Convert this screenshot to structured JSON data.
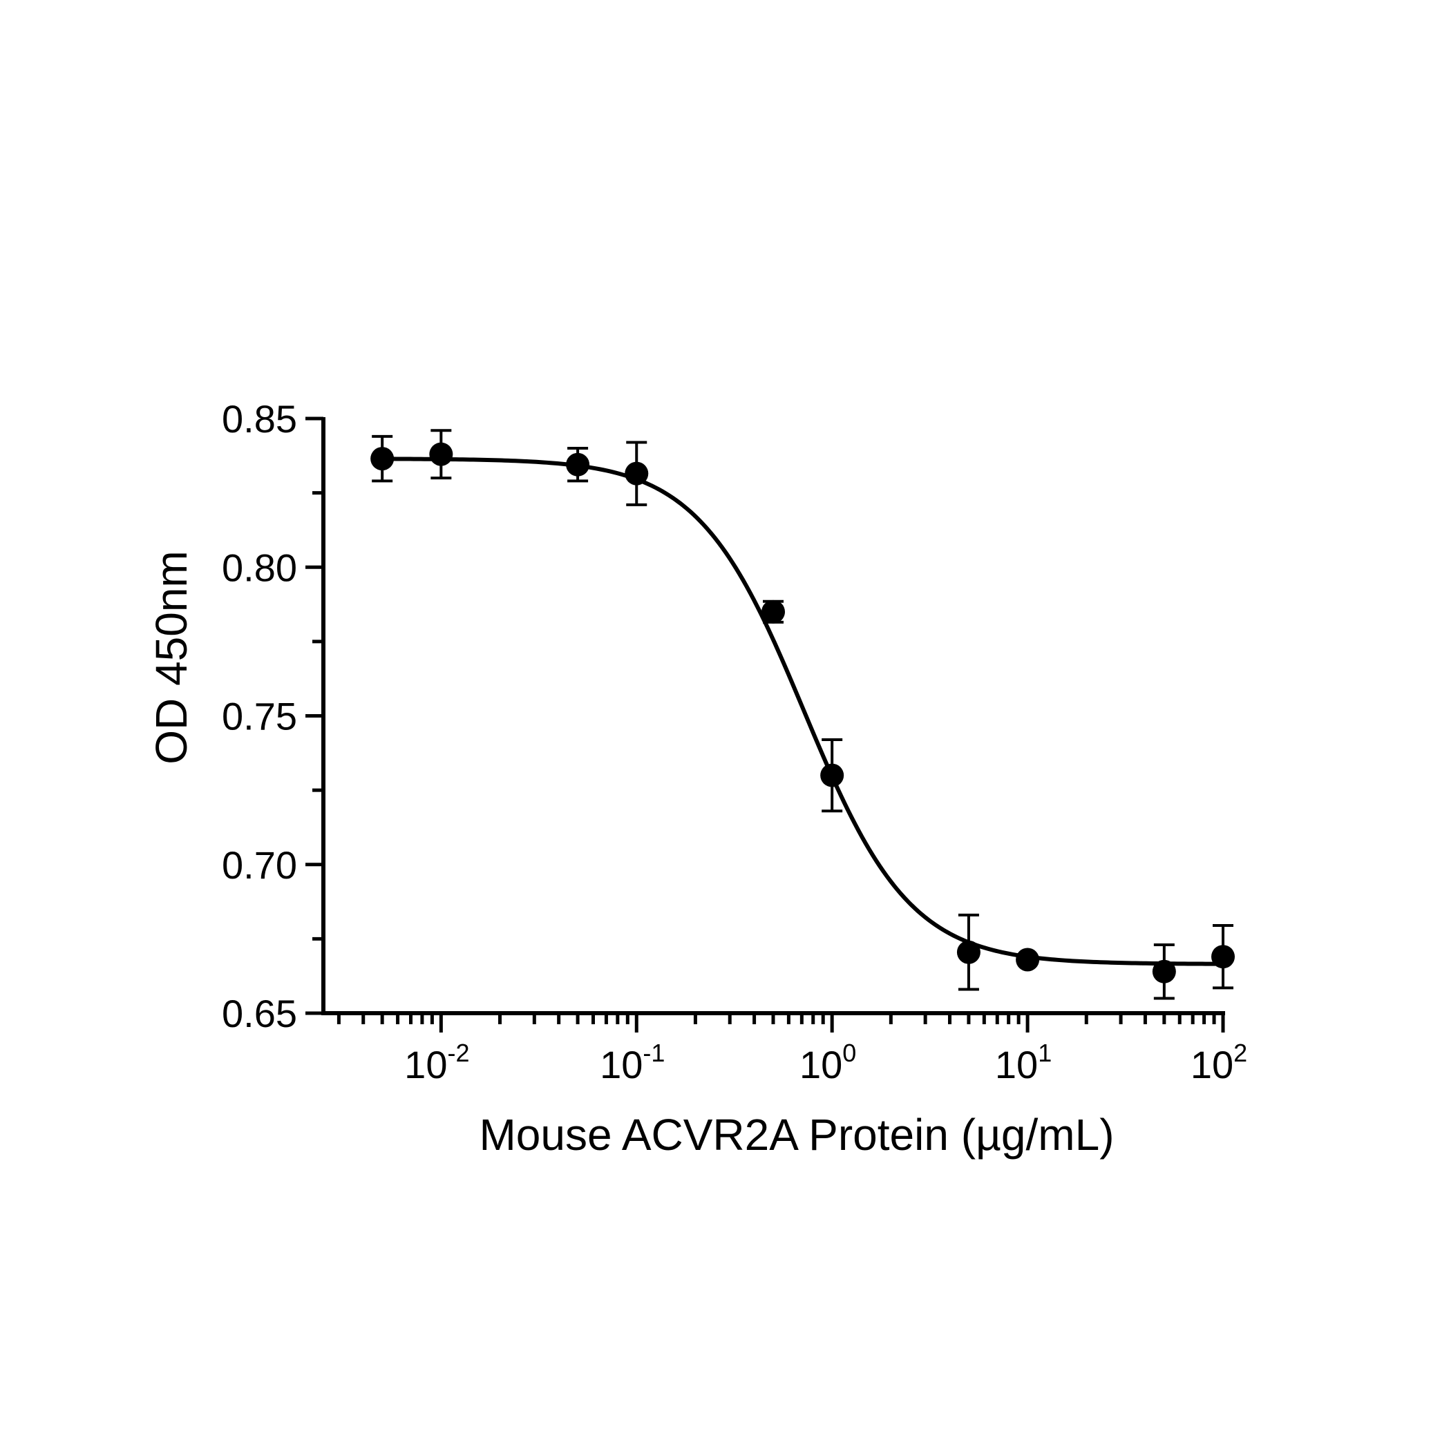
{
  "chart_data": {
    "type": "scatter",
    "xlabel": "Mouse ACVR2A Protein (µg/mL)",
    "ylabel": "OD 450nm",
    "x_scale": "log",
    "xlim": [
      0.0025,
      100
    ],
    "ylim": [
      0.65,
      0.85
    ],
    "x_ticks": [
      {
        "value": 0.01,
        "base": "10",
        "exp": "-2"
      },
      {
        "value": 0.1,
        "base": "10",
        "exp": "-1"
      },
      {
        "value": 1,
        "base": "10",
        "exp": "0"
      },
      {
        "value": 10,
        "base": "10",
        "exp": "1"
      },
      {
        "value": 100,
        "base": "10",
        "exp": "2"
      }
    ],
    "y_ticks": [
      "0.65",
      "0.70",
      "0.75",
      "0.80",
      "0.85"
    ],
    "y_minor_ticks": [
      0.675,
      0.725,
      0.775,
      0.825
    ],
    "grid": false,
    "legend": "none",
    "series": [
      {
        "points": [
          {
            "x": 0.005,
            "y": 0.8365,
            "err": 0.0075
          },
          {
            "x": 0.01,
            "y": 0.838,
            "err": 0.008
          },
          {
            "x": 0.05,
            "y": 0.8345,
            "err": 0.0055
          },
          {
            "x": 0.1,
            "y": 0.8315,
            "err": 0.0105
          },
          {
            "x": 0.5,
            "y": 0.785,
            "err": 0.0035
          },
          {
            "x": 1,
            "y": 0.73,
            "err": 0.012
          },
          {
            "x": 5,
            "y": 0.6705,
            "err": 0.0125
          },
          {
            "x": 10,
            "y": 0.668,
            "err": 0.001
          },
          {
            "x": 50,
            "y": 0.664,
            "err": 0.009
          },
          {
            "x": 100,
            "y": 0.669,
            "err": 0.0105
          }
        ],
        "fit": {
          "model": "4PL",
          "top": 0.8365,
          "bottom": 0.6665,
          "ec50": 0.72,
          "hill": 1.6
        }
      }
    ],
    "colors": {
      "marks": "#000000",
      "background": "#ffffff"
    }
  }
}
